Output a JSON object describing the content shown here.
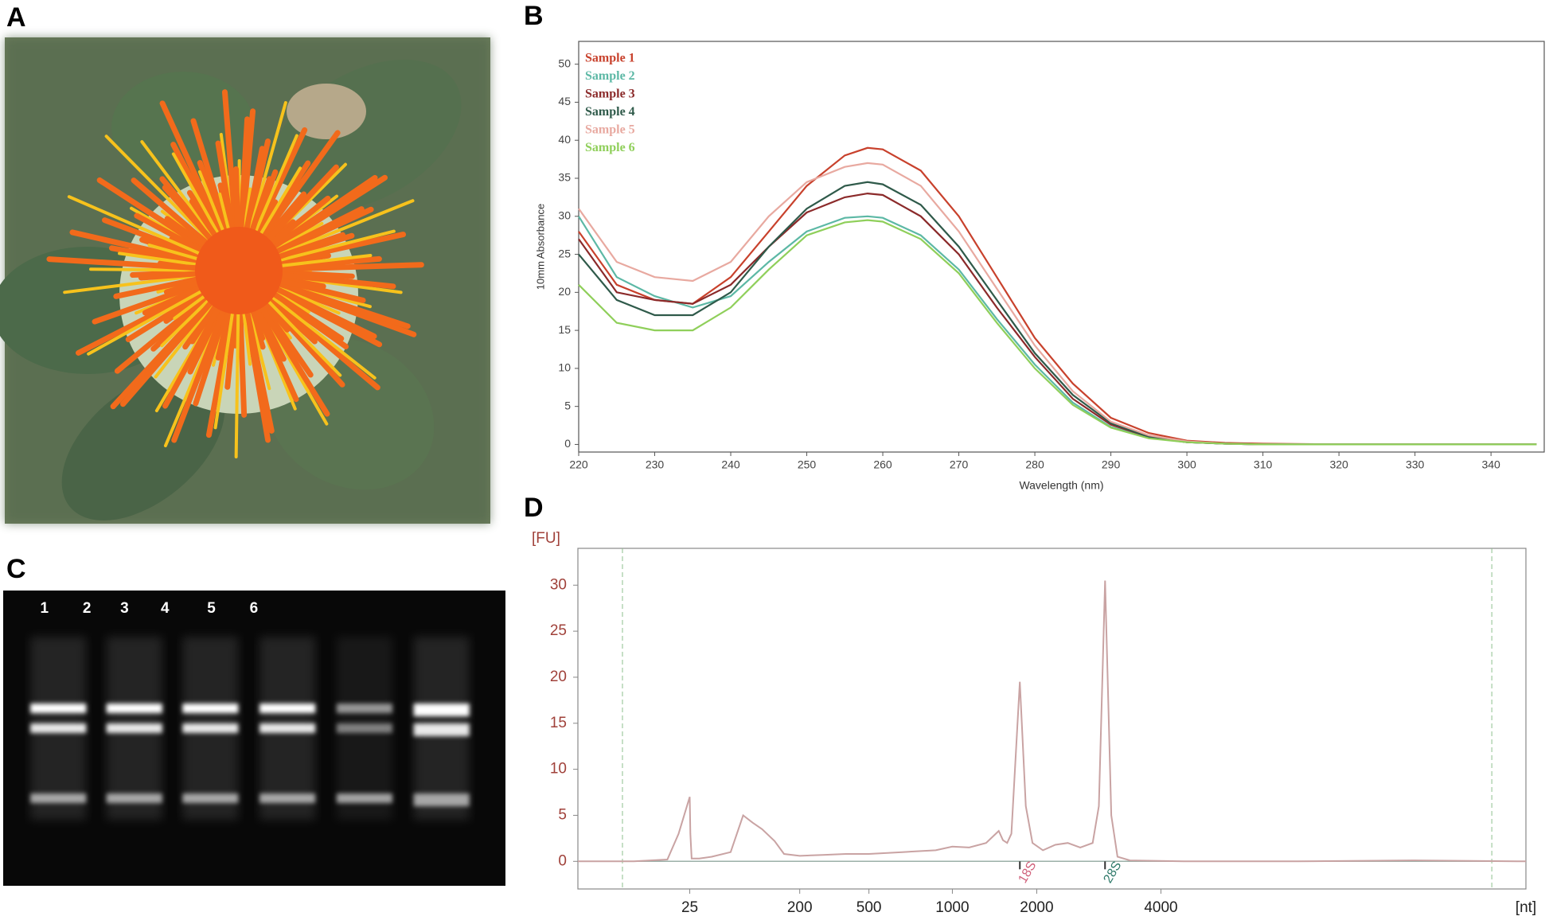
{
  "panels": [
    {
      "label": "A"
    },
    {
      "label": "B"
    },
    {
      "label": "C"
    },
    {
      "label": "D"
    }
  ],
  "gel": {
    "lane_labels": [
      "1",
      "2",
      "3",
      "4",
      "5",
      "6"
    ]
  },
  "chart_data": [
    {
      "type": "line",
      "x_label": "Wavelength (nm)",
      "y_label": "10mm Absorbance",
      "x": [
        220,
        225,
        230,
        235,
        240,
        245,
        250,
        255,
        258,
        260,
        265,
        270,
        275,
        280,
        285,
        290,
        295,
        300,
        305,
        310,
        320,
        330,
        340,
        346
      ],
      "xlim": [
        220,
        347
      ],
      "xticks": [
        220,
        230,
        240,
        250,
        260,
        270,
        280,
        290,
        300,
        310,
        320,
        330,
        340
      ],
      "ylim": [
        -1,
        53
      ],
      "yticks": [
        0,
        5,
        10,
        15,
        20,
        25,
        30,
        35,
        40,
        45,
        50
      ],
      "series": [
        {
          "name": "Sample 1",
          "color": "#c8412c",
          "values": [
            28,
            21,
            19,
            18.5,
            22,
            28,
            34,
            38,
            39,
            38.8,
            36,
            30,
            22,
            14,
            8,
            3.5,
            1.5,
            0.5,
            0.2,
            0.1,
            0,
            0,
            0,
            0
          ]
        },
        {
          "name": "Sample 2",
          "color": "#5cb8a5",
          "values": [
            30,
            22,
            19.5,
            18,
            19.5,
            24,
            28,
            29.8,
            30,
            29.8,
            27.5,
            23,
            16.5,
            10.5,
            5.5,
            2.3,
            0.9,
            0.3,
            0.1,
            0,
            0,
            0,
            0,
            0
          ]
        },
        {
          "name": "Sample 3",
          "color": "#8b2a2a",
          "values": [
            27,
            20,
            19,
            18.5,
            21,
            26,
            30.5,
            32.5,
            33,
            32.8,
            30,
            25,
            18,
            11.5,
            6,
            2.6,
            1,
            0.3,
            0.1,
            0,
            0,
            0,
            0,
            0
          ]
        },
        {
          "name": "Sample 4",
          "color": "#2f5a4a",
          "values": [
            25,
            19,
            17,
            17,
            20,
            26,
            31,
            34,
            34.5,
            34.2,
            31.5,
            26,
            19,
            12,
            6.5,
            2.8,
            1,
            0.3,
            0.1,
            0,
            0,
            0,
            0,
            0
          ]
        },
        {
          "name": "Sample 5",
          "color": "#e8a9a0",
          "values": [
            31,
            24,
            22,
            21.5,
            24,
            30,
            34.5,
            36.5,
            37,
            36.8,
            34,
            28,
            20.5,
            13,
            7,
            3,
            1.2,
            0.4,
            0.1,
            0,
            0,
            0,
            0,
            0
          ]
        },
        {
          "name": "Sample 6",
          "color": "#8fcf5a",
          "values": [
            21,
            16,
            15,
            15,
            18,
            23,
            27.5,
            29.2,
            29.5,
            29.3,
            27,
            22.5,
            16,
            10,
            5.2,
            2.2,
            0.8,
            0.3,
            0.1,
            0,
            0,
            0,
            0,
            0
          ]
        }
      ]
    },
    {
      "type": "line",
      "x_label": "[nt]",
      "y_label": "[FU]",
      "color": "#c9a3a3",
      "x": [
        15,
        20,
        23,
        24,
        25,
        26,
        28,
        40,
        60,
        90,
        110,
        125,
        140,
        160,
        175,
        200,
        300,
        400,
        500,
        700,
        900,
        1000,
        1200,
        1400,
        1550,
        1600,
        1650,
        1700,
        1800,
        1870,
        1950,
        2100,
        2300,
        2500,
        2700,
        2900,
        3000,
        3100,
        3200,
        3300,
        3500,
        5000,
        10000,
        15000,
        20000
      ],
      "values": [
        0,
        0,
        0.2,
        3,
        7,
        3,
        0.3,
        0.3,
        0.5,
        1,
        5,
        4.2,
        3.5,
        2.2,
        0.8,
        0.6,
        0.7,
        0.8,
        0.8,
        1,
        1.2,
        1.6,
        1.5,
        2,
        3.3,
        2.3,
        2,
        3,
        19.5,
        6,
        2,
        1.2,
        1.8,
        2,
        1.5,
        2,
        6,
        30.5,
        5,
        0.5,
        0.1,
        0,
        0,
        0.1,
        0
      ],
      "xlim": [
        15,
        20000
      ],
      "xticks": [
        25,
        200,
        500,
        1000,
        2000,
        4000
      ],
      "ylim": [
        -3,
        34
      ],
      "yticks": [
        0,
        5,
        10,
        15,
        20,
        25,
        30
      ],
      "annotations": [
        {
          "text": "18S",
          "x": 1800,
          "color": "#d0607a"
        },
        {
          "text": "28S",
          "x": 3100,
          "color": "#2f7a6a"
        }
      ]
    }
  ]
}
